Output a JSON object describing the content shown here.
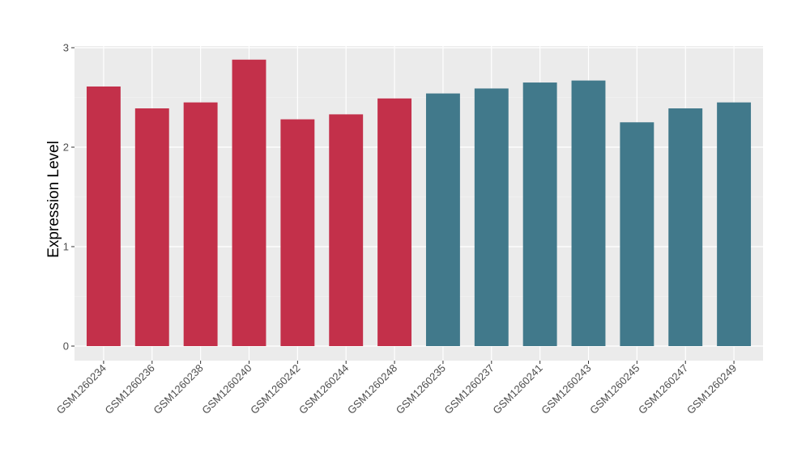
{
  "chart_data": {
    "type": "bar",
    "title": "",
    "xlabel": "",
    "ylabel": "Expression Level",
    "ylim": [
      0,
      3
    ],
    "yticks": [
      "0",
      "1",
      "2",
      "3"
    ],
    "grid": true,
    "legend": "none",
    "categories": [
      "GSM1260234",
      "GSM1260236",
      "GSM1260238",
      "GSM1260240",
      "GSM1260242",
      "GSM1260244",
      "GSM1260248",
      "GSM1260235",
      "GSM1260237",
      "GSM1260241",
      "GSM1260243",
      "GSM1260245",
      "GSM1260247",
      "GSM1260249"
    ],
    "values": [
      2.61,
      2.39,
      2.45,
      2.88,
      2.28,
      2.33,
      2.49,
      2.54,
      2.59,
      2.65,
      2.67,
      2.25,
      2.39,
      2.45
    ],
    "groups": [
      0,
      0,
      0,
      0,
      0,
      0,
      0,
      1,
      1,
      1,
      1,
      1,
      1,
      1
    ],
    "group_colors": [
      "#C3304A",
      "#41798B"
    ]
  }
}
